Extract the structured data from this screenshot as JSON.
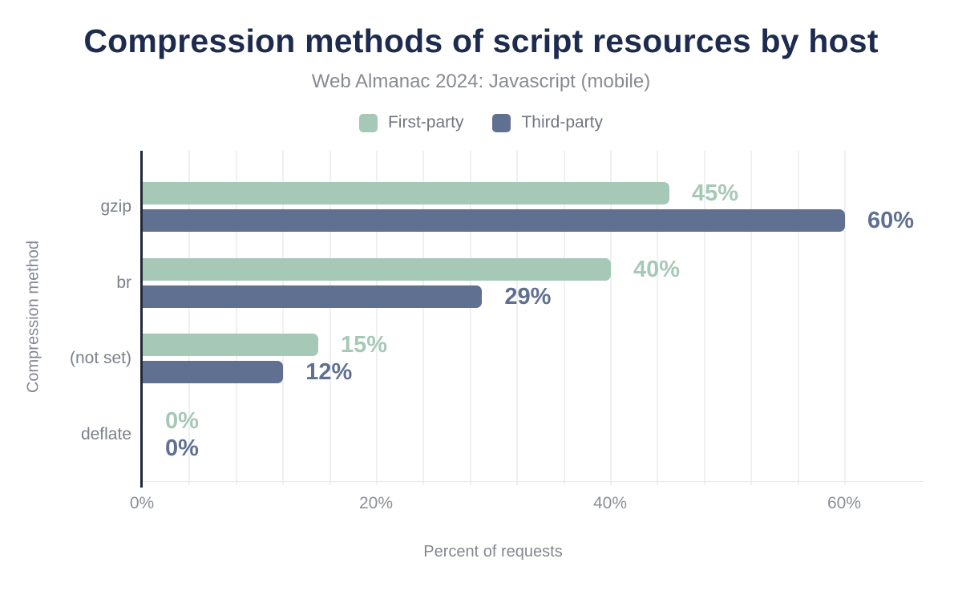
{
  "title": "Compression methods of script resources by host",
  "subtitle": "Web Almanac 2024: Javascript (mobile)",
  "legend": {
    "items": [
      {
        "label": "First-party",
        "color": "#a6c9b7"
      },
      {
        "label": "Third-party",
        "color": "#5f7090"
      }
    ]
  },
  "colors": {
    "title_text": "#1d2c4e",
    "subtitle_text": "#878b91",
    "axis_line": "#222838",
    "gridline": "#f0f0f4",
    "first_party": "#a6c9b7",
    "third_party": "#5f7090"
  },
  "chart_data": {
    "type": "bar",
    "orientation": "horizontal",
    "title": "Compression methods of script resources by host",
    "subtitle": "Web Almanac 2024: Javascript (mobile)",
    "categories": [
      "gzip",
      "br",
      "(not set)",
      "deflate"
    ],
    "series": [
      {
        "name": "First-party",
        "color": "#a6c9b7",
        "values": [
          45,
          40,
          15,
          0
        ],
        "labels": [
          "45%",
          "40%",
          "15%",
          "0%"
        ]
      },
      {
        "name": "Third-party",
        "color": "#5f7090",
        "values": [
          60,
          29,
          12,
          0
        ],
        "labels": [
          "60%",
          "29%",
          "12%",
          "0%"
        ]
      }
    ],
    "xlabel": "Percent of requests",
    "ylabel": "Compression method",
    "xlim": [
      0,
      60
    ],
    "x_ticks": [
      {
        "pct": 0,
        "label": "0%"
      },
      {
        "pct": 20,
        "label": "20%"
      },
      {
        "pct": 40,
        "label": "40%"
      },
      {
        "pct": 60,
        "label": "60%"
      }
    ],
    "minor_gridline_step_pct": 4,
    "grid": "vertical-minor",
    "legend_position": "top",
    "value_labels": "outside-end"
  }
}
